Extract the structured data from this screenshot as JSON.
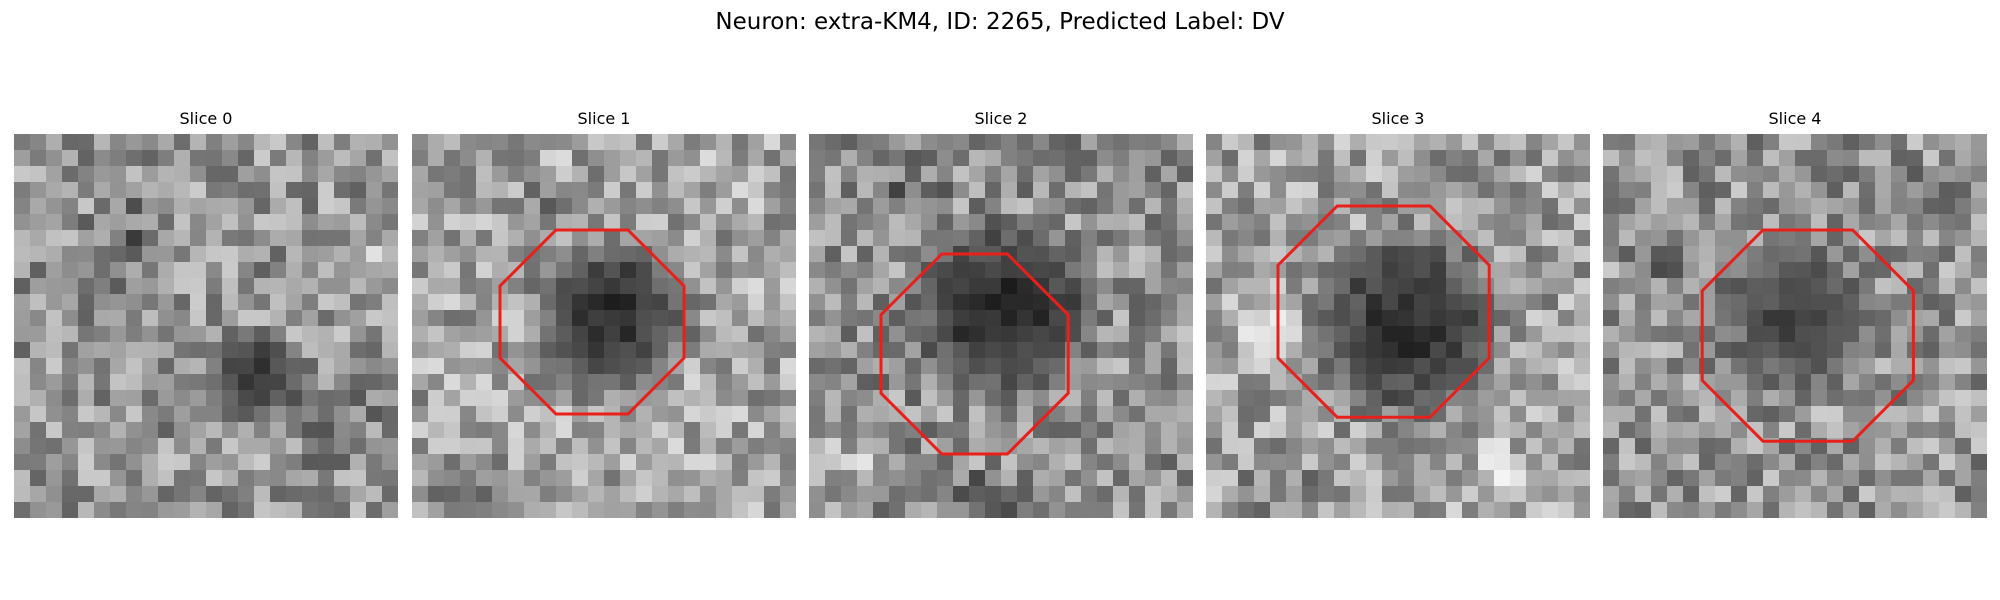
{
  "figure": {
    "title": "Neuron: extra-KM4, ID: 2265, Predicted Label: DV"
  },
  "colors": {
    "outline": "#e8201c",
    "background": "#ffffff"
  },
  "panels": [
    {
      "title": "Slice 0",
      "has_outline": false
    },
    {
      "title": "Slice 1",
      "has_outline": true
    },
    {
      "title": "Slice 2",
      "has_outline": true
    },
    {
      "title": "Slice 3",
      "has_outline": true
    },
    {
      "title": "Slice 4",
      "has_outline": true
    }
  ]
}
